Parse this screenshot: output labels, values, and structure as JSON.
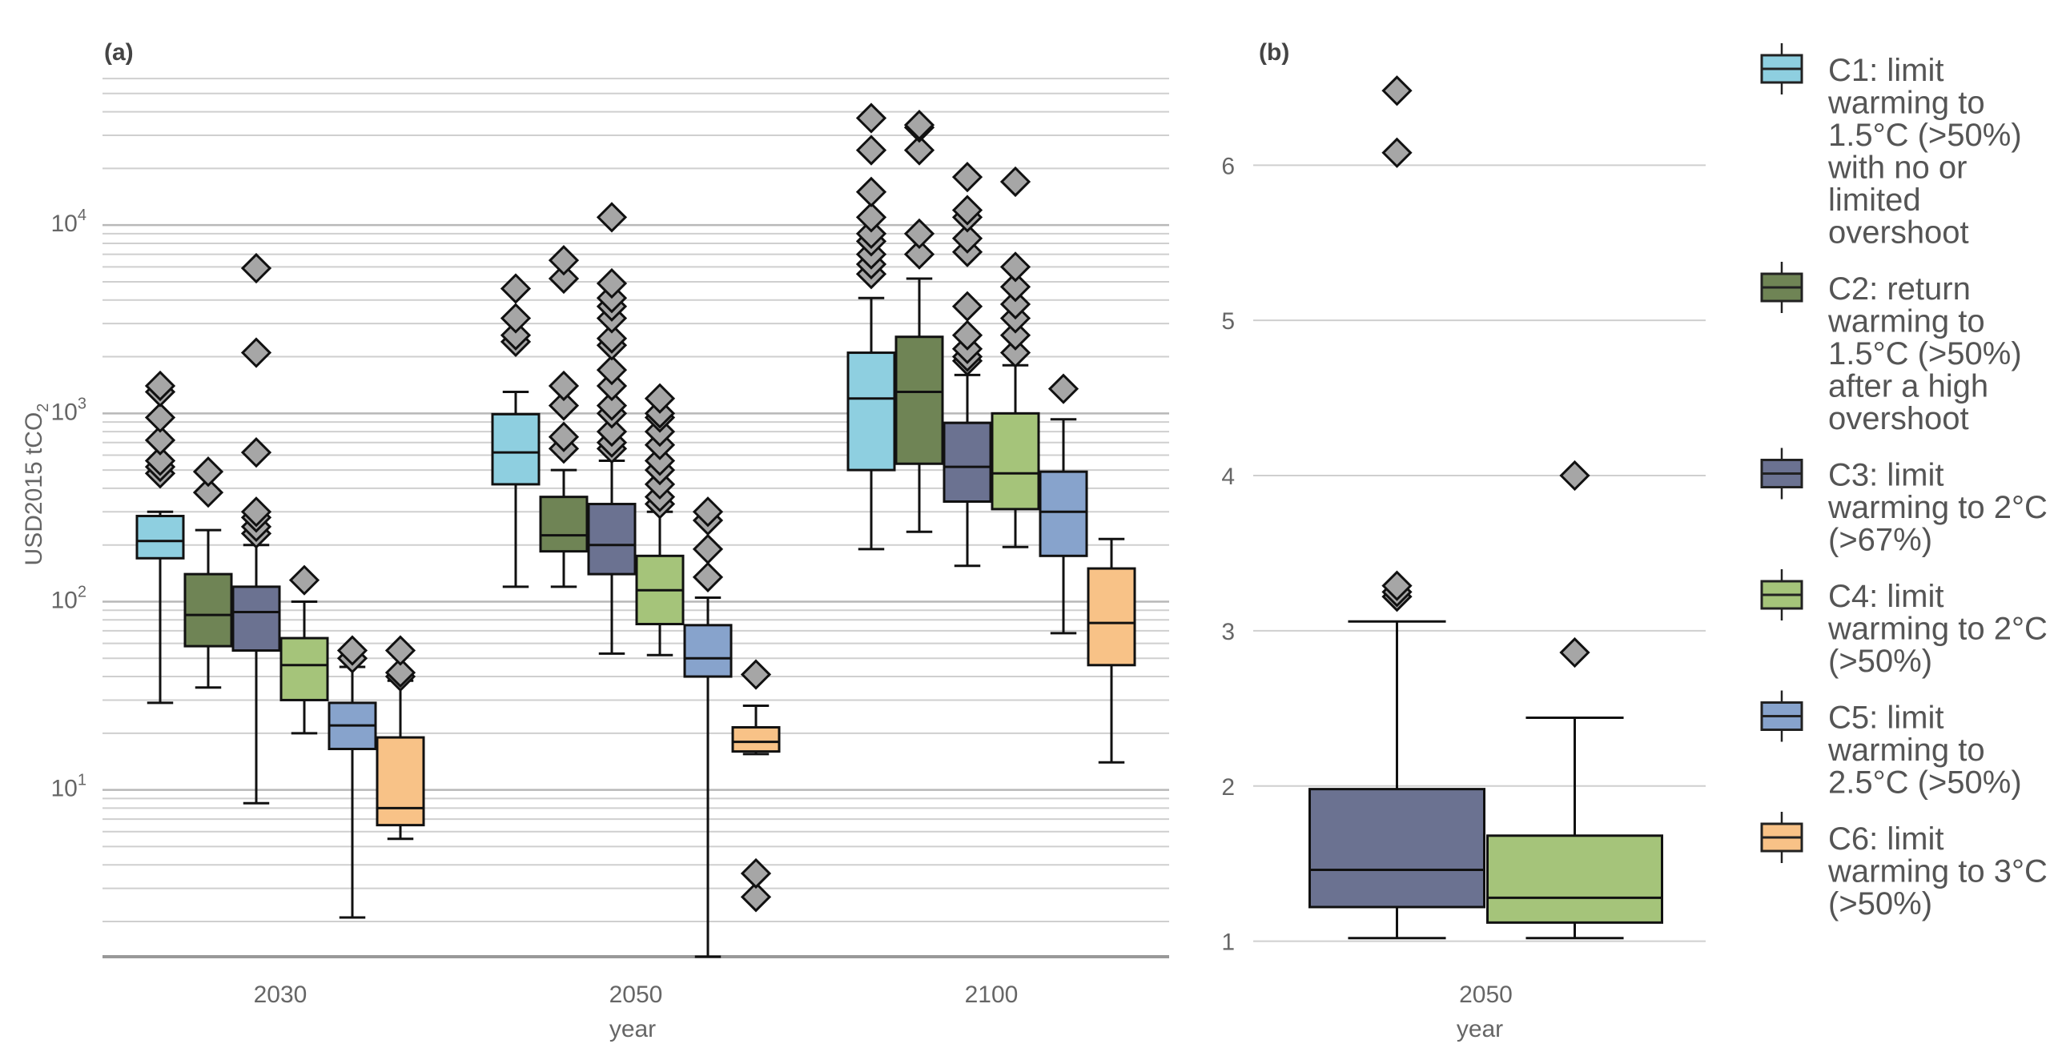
{
  "chart_data": [
    {
      "panel": "(a)",
      "type": "box",
      "ylabel": "USD2015 tCO",
      "ylabel_sub": "2",
      "xlabel": "year",
      "yscale": "log",
      "ylim": [
        1.3,
        65000
      ],
      "yticks": [
        {
          "v": 10,
          "b": "10",
          "e": "1"
        },
        {
          "v": 100,
          "b": "10",
          "e": "2"
        },
        {
          "v": 1000,
          "b": "10",
          "e": "3"
        },
        {
          "v": 10000,
          "b": "10",
          "e": "4"
        }
      ],
      "grid": true,
      "categories": [
        "2030",
        "2050",
        "2100"
      ],
      "series": [
        {
          "name": "C1",
          "color": "#8ecfe0",
          "boxes": [
            {
              "q1": 170,
              "median": 210,
              "q3": 285,
              "whislo": 29,
              "whishi": 300,
              "fliers": [
                480,
                520,
                560,
                720,
                950,
                1300,
                1400
              ]
            },
            {
              "q1": 420,
              "median": 620,
              "q3": 990,
              "whislo": 120,
              "whishi": 1300,
              "fliers": [
                2400,
                2600,
                3200,
                4600
              ]
            },
            {
              "q1": 500,
              "median": 1200,
              "q3": 2100,
              "whislo": 190,
              "whishi": 4100,
              "fliers": [
                5500,
                6200,
                7000,
                8200,
                9000,
                11000,
                15000,
                25000,
                37000
              ]
            }
          ]
        },
        {
          "name": "C2",
          "color": "#6f8455",
          "boxes": [
            {
              "q1": 58,
              "median": 85,
              "q3": 140,
              "whislo": 35,
              "whishi": 240,
              "fliers": [
                380,
                490
              ]
            },
            {
              "q1": 185,
              "median": 225,
              "q3": 360,
              "whislo": 120,
              "whishi": 500,
              "fliers": [
                650,
                750,
                1100,
                1400,
                5200,
                6500
              ]
            },
            {
              "q1": 540,
              "median": 1300,
              "q3": 2550,
              "whislo": 235,
              "whishi": 5200,
              "fliers": [
                7000,
                9000,
                25000,
                33000,
                34000
              ]
            }
          ]
        },
        {
          "name": "C3",
          "color": "#6b7291",
          "boxes": [
            {
              "q1": 55,
              "median": 88,
              "q3": 120,
              "whislo": 8.5,
              "whishi": 200,
              "fliers": [
                230,
                250,
                280,
                300,
                620,
                2100,
                5900
              ]
            },
            {
              "q1": 140,
              "median": 200,
              "q3": 330,
              "whislo": 53,
              "whishi": 560,
              "fliers": [
                650,
                700,
                800,
                1000,
                1100,
                1400,
                1700,
                2300,
                2500,
                3200,
                3700,
                4100,
                4900,
                11000
              ]
            },
            {
              "q1": 340,
              "median": 520,
              "q3": 890,
              "whislo": 155,
              "whishi": 1600,
              "fliers": [
                1900,
                2000,
                2200,
                2600,
                3700,
                7200,
                8500,
                11000,
                12000,
                18000
              ]
            }
          ]
        },
        {
          "name": "C4",
          "color": "#a5c47a",
          "boxes": [
            {
              "q1": 30,
              "median": 46,
              "q3": 64,
              "whislo": 20,
              "whishi": 100,
              "fliers": [
                130
              ]
            },
            {
              "q1": 76,
              "median": 115,
              "q3": 175,
              "whislo": 52,
              "whishi": 300,
              "fliers": [
                330,
                360,
                420,
                500,
                560,
                680,
                800,
                950,
                1000,
                1200
              ]
            },
            {
              "q1": 310,
              "median": 480,
              "q3": 1000,
              "whislo": 195,
              "whishi": 1800,
              "fliers": [
                2100,
                2600,
                3200,
                3800,
                4700,
                6000,
                17000
              ]
            }
          ]
        },
        {
          "name": "C5",
          "color": "#87a3cc",
          "boxes": [
            {
              "q1": 16.5,
              "median": 22,
              "q3": 29,
              "whislo": 2.1,
              "whishi": 45,
              "fliers": [
                50,
                55
              ]
            },
            {
              "q1": 40,
              "median": 50,
              "q3": 75,
              "whislo": 1.3,
              "whishi": 105,
              "fliers": [
                135,
                190,
                270,
                300
              ]
            },
            {
              "q1": 175,
              "median": 300,
              "q3": 490,
              "whislo": 68,
              "whishi": 930,
              "fliers": [
                1350
              ]
            }
          ]
        },
        {
          "name": "C6",
          "color": "#f8c287",
          "boxes": [
            {
              "q1": 6.5,
              "median": 8,
              "q3": 19,
              "whislo": 5.5,
              "whishi": 38,
              "fliers": [
                40,
                42,
                55
              ]
            },
            {
              "q1": 16,
              "median": 18,
              "q3": 21.5,
              "whislo": 15.5,
              "whishi": 28,
              "fliers": [
                2.7,
                3.6,
                41
              ]
            },
            {
              "q1": 46,
              "median": 77,
              "q3": 150,
              "whislo": 14,
              "whishi": 215,
              "fliers": []
            }
          ]
        }
      ]
    },
    {
      "panel": "(b)",
      "type": "box",
      "xlabel": "year",
      "ylim": [
        0.9,
        6.6
      ],
      "yticks": [
        1,
        2,
        3,
        4,
        5,
        6
      ],
      "grid": true,
      "categories": [
        "2050"
      ],
      "series": [
        {
          "name": "C3",
          "color": "#6b7291",
          "boxes": [
            {
              "q1": 1.22,
              "median": 1.46,
              "q3": 1.98,
              "whislo": 1.02,
              "whishi": 3.06,
              "fliers": [
                3.22,
                3.25,
                3.29,
                6.08,
                6.48
              ]
            }
          ]
        },
        {
          "name": "C4",
          "color": "#a5c47a",
          "boxes": [
            {
              "q1": 1.12,
              "median": 1.28,
              "q3": 1.68,
              "whislo": 1.02,
              "whishi": 2.44,
              "fliers": [
                2.86,
                4.0
              ]
            }
          ]
        }
      ]
    }
  ],
  "legend": [
    {
      "key": "C1",
      "color": "#8ecfe0",
      "lines": [
        "C1: limit",
        "warming to",
        "1.5°C (>50%)",
        "with no or",
        "limited",
        "overshoot"
      ]
    },
    {
      "key": "C2",
      "color": "#6f8455",
      "lines": [
        "C2: return",
        "warming to",
        "1.5°C (>50%)",
        "after a high",
        "overshoot"
      ]
    },
    {
      "key": "C3",
      "color": "#6b7291",
      "lines": [
        "C3: limit",
        "warming to 2°C",
        "(>67%)"
      ]
    },
    {
      "key": "C4",
      "color": "#a5c47a",
      "lines": [
        "C4: limit",
        "warming to 2°C",
        "(>50%)"
      ]
    },
    {
      "key": "C5",
      "color": "#87a3cc",
      "lines": [
        "C5: limit",
        "warming to",
        "2.5°C (>50%)"
      ]
    },
    {
      "key": "C6",
      "color": "#f8c287",
      "lines": [
        "C6: limit",
        "warming to 3°C",
        "(>50%)"
      ]
    }
  ],
  "colors": {
    "flier": "#a6a6a6",
    "outline": "#111111",
    "grid": "#cfcfcf"
  }
}
